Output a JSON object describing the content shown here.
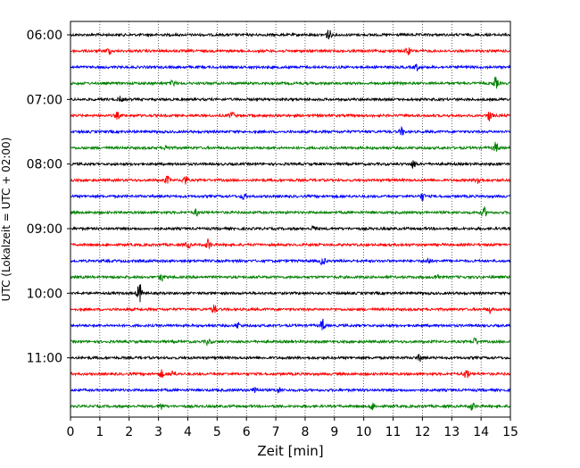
{
  "chart_data": {
    "type": "line",
    "title": "",
    "xlabel": "Zeit  [min]",
    "ylabel": "UTC (Lokalzeit = UTC + 02:00)",
    "xlim": [
      0,
      15
    ],
    "x_ticks": [
      "0",
      "1",
      "2",
      "3",
      "4",
      "5",
      "6",
      "7",
      "8",
      "9",
      "10",
      "11",
      "12",
      "13",
      "14",
      "15"
    ],
    "y_ticks": [
      "06:00",
      "07:00",
      "08:00",
      "09:00",
      "10:00",
      "11:00"
    ],
    "row_minutes": 15,
    "row_colors": [
      "#000000",
      "#ff0000",
      "#0000ff",
      "#008000"
    ],
    "grid": "vertical dotted",
    "traces": [
      {
        "start": "06:00",
        "color": "#000000",
        "events": [
          [
            8.8,
            0.9
          ]
        ]
      },
      {
        "start": "06:15",
        "color": "#ff0000",
        "events": [
          [
            1.3,
            0.5
          ],
          [
            11.5,
            0.6
          ]
        ]
      },
      {
        "start": "06:30",
        "color": "#0000ff",
        "events": [
          [
            11.8,
            0.5
          ]
        ]
      },
      {
        "start": "06:45",
        "color": "#008000",
        "events": [
          [
            3.5,
            0.5
          ],
          [
            14.5,
            0.9
          ]
        ]
      },
      {
        "start": "07:00",
        "color": "#000000",
        "events": [
          [
            1.7,
            0.4
          ]
        ]
      },
      {
        "start": "07:15",
        "color": "#ff0000",
        "events": [
          [
            1.6,
            0.5
          ],
          [
            5.5,
            0.6
          ],
          [
            14.3,
            0.9
          ]
        ]
      },
      {
        "start": "07:30",
        "color": "#0000ff",
        "events": [
          [
            11.3,
            0.6
          ]
        ]
      },
      {
        "start": "07:45",
        "color": "#008000",
        "events": [
          [
            3.3,
            0.5
          ],
          [
            14.5,
            0.8
          ]
        ]
      },
      {
        "start": "08:00",
        "color": "#000000",
        "events": [
          [
            11.7,
            0.6
          ]
        ]
      },
      {
        "start": "08:15",
        "color": "#ff0000",
        "events": [
          [
            3.3,
            0.6
          ],
          [
            3.9,
            0.8
          ],
          [
            13.9,
            0.6
          ]
        ]
      },
      {
        "start": "08:30",
        "color": "#0000ff",
        "events": [
          [
            5.9,
            0.5
          ],
          [
            12.0,
            0.6
          ]
        ]
      },
      {
        "start": "08:45",
        "color": "#008000",
        "events": [
          [
            4.3,
            0.5
          ],
          [
            14.1,
            0.8
          ]
        ]
      },
      {
        "start": "09:00",
        "color": "#000000",
        "events": [
          [
            8.3,
            0.4
          ]
        ]
      },
      {
        "start": "09:15",
        "color": "#ff0000",
        "events": [
          [
            4.0,
            0.5
          ],
          [
            4.7,
            0.9
          ]
        ]
      },
      {
        "start": "09:30",
        "color": "#0000ff",
        "events": [
          [
            8.6,
            0.7
          ],
          [
            12.2,
            0.5
          ]
        ]
      },
      {
        "start": "09:45",
        "color": "#008000",
        "events": [
          [
            3.1,
            0.6
          ],
          [
            12.5,
            0.6
          ]
        ]
      },
      {
        "start": "10:00",
        "color": "#000000",
        "events": [
          [
            2.35,
            1.6
          ]
        ]
      },
      {
        "start": "10:15",
        "color": "#ff0000",
        "events": [
          [
            4.9,
            0.7
          ],
          [
            14.3,
            0.5
          ]
        ]
      },
      {
        "start": "10:30",
        "color": "#0000ff",
        "events": [
          [
            5.7,
            0.5
          ],
          [
            8.6,
            1.0
          ]
        ]
      },
      {
        "start": "10:45",
        "color": "#008000",
        "events": [
          [
            4.7,
            0.5
          ],
          [
            13.8,
            0.6
          ]
        ]
      },
      {
        "start": "11:00",
        "color": "#000000",
        "events": [
          [
            11.9,
            0.5
          ]
        ]
      },
      {
        "start": "11:15",
        "color": "#ff0000",
        "events": [
          [
            3.1,
            0.6
          ],
          [
            3.5,
            0.6
          ],
          [
            13.5,
            0.9
          ]
        ]
      },
      {
        "start": "11:30",
        "color": "#0000ff",
        "events": [
          [
            6.3,
            0.7
          ],
          [
            7.1,
            0.4
          ]
        ]
      },
      {
        "start": "11:45",
        "color": "#008000",
        "events": [
          [
            3.1,
            0.5
          ],
          [
            10.3,
            0.6
          ],
          [
            13.7,
            0.6
          ]
        ]
      }
    ]
  }
}
